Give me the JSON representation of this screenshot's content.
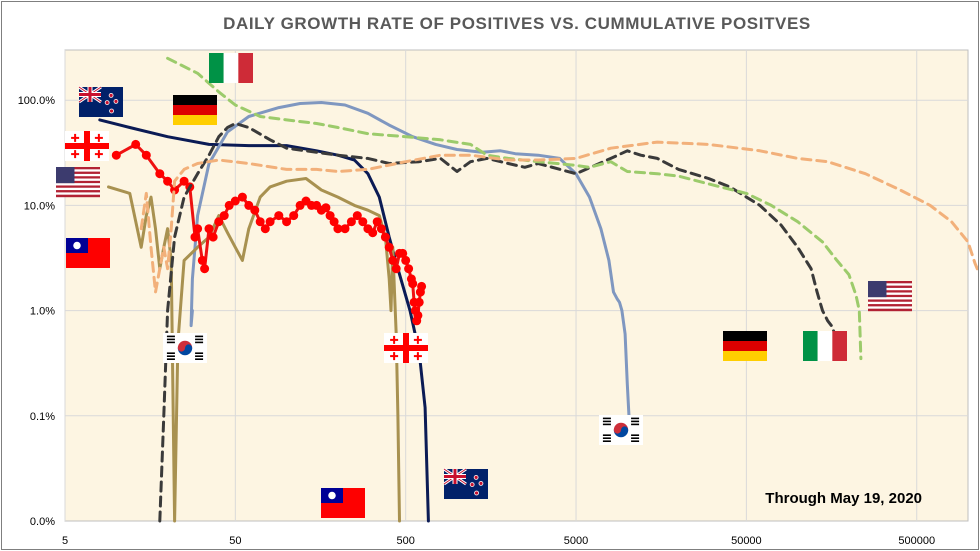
{
  "chart_data": {
    "type": "line",
    "title": "DAILY GROWTH RATE OF POSITIVES VS. CUMMULATIVE POSITVES",
    "annotation": "Through May 19, 2020",
    "xlabel": "",
    "ylabel": "",
    "x_scale": "log",
    "y_scale": "log",
    "xlim": [
      5,
      1000000
    ],
    "ylim": [
      0.0001,
      3.0
    ],
    "x_ticks": [
      5,
      50,
      500,
      5000,
      50000,
      500000
    ],
    "x_tick_labels": [
      "5",
      "50",
      "500",
      "5000",
      "50000",
      "500000"
    ],
    "y_ticks": [
      0.0001,
      0.001,
      0.01,
      0.1,
      1.0
    ],
    "y_tick_labels": [
      "0.0%",
      "0.1%",
      "1.0%",
      "10.0%",
      "100.0%"
    ],
    "grid": true,
    "background": "#fdf5e2",
    "legend": "none (series identified by flag icons at line ends)",
    "series": [
      {
        "name": "New Zealand",
        "color": "#0b1b55",
        "style": "solid",
        "points": [
          [
            8,
            0.65
          ],
          [
            12,
            0.55
          ],
          [
            20,
            0.45
          ],
          [
            35,
            0.38
          ],
          [
            60,
            0.37
          ],
          [
            100,
            0.37
          ],
          [
            150,
            0.33
          ],
          [
            200,
            0.3
          ],
          [
            250,
            0.27
          ],
          [
            300,
            0.2
          ],
          [
            350,
            0.12
          ],
          [
            400,
            0.05
          ],
          [
            450,
            0.025
          ],
          [
            530,
            0.01
          ],
          [
            600,
            0.004
          ],
          [
            650,
            0.0012
          ],
          [
            680,
            5e-05
          ]
        ]
      },
      {
        "name": "South Korea",
        "color": "#7f97c0",
        "style": "solid",
        "points": [
          [
            28,
            0.01
          ],
          [
            27.5,
            0.0072
          ],
          [
            28,
            0.02
          ],
          [
            30,
            0.08
          ],
          [
            35,
            0.25
          ],
          [
            45,
            0.5
          ],
          [
            60,
            0.7
          ],
          [
            90,
            0.85
          ],
          [
            120,
            0.93
          ],
          [
            160,
            0.95
          ],
          [
            220,
            0.9
          ],
          [
            300,
            0.75
          ],
          [
            400,
            0.58
          ],
          [
            550,
            0.45
          ],
          [
            750,
            0.38
          ],
          [
            1000,
            0.34
          ],
          [
            1400,
            0.32
          ],
          [
            1800,
            0.33
          ],
          [
            2200,
            0.31
          ],
          [
            3000,
            0.3
          ],
          [
            4000,
            0.28
          ],
          [
            5000,
            0.2
          ],
          [
            6000,
            0.12
          ],
          [
            7000,
            0.06
          ],
          [
            7800,
            0.03
          ],
          [
            8300,
            0.015
          ],
          [
            8700,
            0.013
          ],
          [
            9000,
            0.012
          ],
          [
            9300,
            0.01
          ],
          [
            9700,
            0.006
          ],
          [
            10000,
            0.002
          ],
          [
            10300,
            0.0008
          ],
          [
            10450,
            0.00055
          ]
        ]
      },
      {
        "name": "Taiwan",
        "color": "#a89150",
        "style": "solid",
        "points": [
          [
            9,
            0.15
          ],
          [
            12,
            0.13
          ],
          [
            14,
            0.04
          ],
          [
            15,
            0.08
          ],
          [
            16,
            0.12
          ],
          [
            17,
            0.06
          ],
          [
            18,
            0.025
          ],
          [
            19,
            0.04
          ],
          [
            20,
            0.06
          ],
          [
            21,
            0.03
          ],
          [
            22,
            5e-05
          ],
          [
            23,
            0.005
          ],
          [
            25,
            0.03
          ],
          [
            30,
            0.04
          ],
          [
            35,
            0.05
          ],
          [
            40,
            0.08
          ],
          [
            45,
            0.055
          ],
          [
            50,
            0.04
          ],
          [
            55,
            0.03
          ],
          [
            60,
            0.06
          ],
          [
            70,
            0.12
          ],
          [
            80,
            0.15
          ],
          [
            100,
            0.17
          ],
          [
            130,
            0.18
          ],
          [
            160,
            0.14
          ],
          [
            200,
            0.12
          ],
          [
            250,
            0.1
          ],
          [
            300,
            0.09
          ],
          [
            350,
            0.08
          ],
          [
            380,
            0.05
          ],
          [
            400,
            0.02
          ],
          [
            410,
            0.01
          ],
          [
            420,
            0.04
          ],
          [
            430,
            0.015
          ],
          [
            440,
            0.006
          ],
          [
            450,
            0.001
          ],
          [
            460,
            5e-05
          ]
        ]
      },
      {
        "name": "Georgia",
        "color": "#ee1111",
        "style": "solid+markers",
        "points": [
          [
            10,
            0.3
          ],
          [
            13,
            0.38
          ],
          [
            15,
            0.3
          ],
          [
            18,
            0.2
          ],
          [
            20,
            0.17
          ],
          [
            22,
            0.14
          ],
          [
            25,
            0.17
          ],
          [
            27,
            0.15
          ],
          [
            29,
            0.05
          ],
          [
            30,
            0.06
          ],
          [
            32,
            0.03
          ],
          [
            33,
            0.025
          ],
          [
            35,
            0.06
          ],
          [
            37,
            0.05
          ],
          [
            40,
            0.07
          ],
          [
            43,
            0.08
          ],
          [
            46,
            0.1
          ],
          [
            50,
            0.11
          ],
          [
            55,
            0.12
          ],
          [
            60,
            0.1
          ],
          [
            65,
            0.09
          ],
          [
            70,
            0.07
          ],
          [
            75,
            0.06
          ],
          [
            80,
            0.07
          ],
          [
            90,
            0.08
          ],
          [
            100,
            0.07
          ],
          [
            110,
            0.08
          ],
          [
            120,
            0.1
          ],
          [
            130,
            0.11
          ],
          [
            140,
            0.1
          ],
          [
            150,
            0.1
          ],
          [
            160,
            0.09
          ],
          [
            170,
            0.095
          ],
          [
            180,
            0.08
          ],
          [
            190,
            0.07
          ],
          [
            200,
            0.06
          ],
          [
            220,
            0.06
          ],
          [
            240,
            0.07
          ],
          [
            260,
            0.08
          ],
          [
            280,
            0.07
          ],
          [
            300,
            0.06
          ],
          [
            320,
            0.055
          ],
          [
            340,
            0.07
          ],
          [
            360,
            0.06
          ],
          [
            380,
            0.05
          ],
          [
            400,
            0.04
          ],
          [
            420,
            0.03
          ],
          [
            440,
            0.025
          ],
          [
            460,
            0.035
          ],
          [
            480,
            0.035
          ],
          [
            500,
            0.03
          ],
          [
            520,
            0.025
          ],
          [
            540,
            0.02
          ],
          [
            550,
            0.018
          ],
          [
            560,
            0.012
          ],
          [
            570,
            0.01
          ],
          [
            580,
            0.008
          ],
          [
            590,
            0.009
          ],
          [
            600,
            0.012
          ],
          [
            610,
            0.015
          ],
          [
            620,
            0.017
          ]
        ]
      },
      {
        "name": "Germany",
        "color": "#3a3a3a",
        "style": "dashed",
        "points": [
          [
            18,
            5e-05
          ],
          [
            19,
            0.001
          ],
          [
            20,
            0.01
          ],
          [
            22,
            0.05
          ],
          [
            25,
            0.12
          ],
          [
            30,
            0.2
          ],
          [
            35,
            0.3
          ],
          [
            40,
            0.45
          ],
          [
            45,
            0.55
          ],
          [
            50,
            0.6
          ],
          [
            60,
            0.55
          ],
          [
            80,
            0.42
          ],
          [
            100,
            0.35
          ],
          [
            150,
            0.32
          ],
          [
            200,
            0.3
          ],
          [
            300,
            0.28
          ],
          [
            400,
            0.25
          ],
          [
            600,
            0.26
          ],
          [
            800,
            0.28
          ],
          [
            1000,
            0.21
          ],
          [
            1200,
            0.26
          ],
          [
            1500,
            0.28
          ],
          [
            2000,
            0.25
          ],
          [
            2500,
            0.23
          ],
          [
            3000,
            0.25
          ],
          [
            5000,
            0.2
          ],
          [
            8000,
            0.28
          ],
          [
            10000,
            0.33
          ],
          [
            12000,
            0.3
          ],
          [
            15000,
            0.28
          ],
          [
            20000,
            0.22
          ],
          [
            30000,
            0.18
          ],
          [
            40000,
            0.15
          ],
          [
            60000,
            0.1
          ],
          [
            80000,
            0.065
          ],
          [
            100000,
            0.04
          ],
          [
            120000,
            0.025
          ],
          [
            130000,
            0.015
          ],
          [
            140000,
            0.01
          ],
          [
            150000,
            0.008
          ],
          [
            160000,
            0.007
          ],
          [
            170000,
            0.005
          ],
          [
            175000,
            0.0035
          ]
        ]
      },
      {
        "name": "Italy",
        "color": "#9ccb6b",
        "style": "dashed",
        "points": [
          [
            20,
            2.5
          ],
          [
            30,
            1.8
          ],
          [
            40,
            1.2
          ],
          [
            50,
            0.9
          ],
          [
            70,
            0.7
          ],
          [
            100,
            0.65
          ],
          [
            150,
            0.6
          ],
          [
            200,
            0.55
          ],
          [
            300,
            0.48
          ],
          [
            500,
            0.45
          ],
          [
            800,
            0.42
          ],
          [
            1200,
            0.38
          ],
          [
            1500,
            0.3
          ],
          [
            2000,
            0.28
          ],
          [
            3000,
            0.26
          ],
          [
            5000,
            0.24
          ],
          [
            6000,
            0.23
          ],
          [
            8000,
            0.26
          ],
          [
            10000,
            0.21
          ],
          [
            15000,
            0.2
          ],
          [
            20000,
            0.19
          ],
          [
            30000,
            0.16
          ],
          [
            50000,
            0.13
          ],
          [
            70000,
            0.1
          ],
          [
            100000,
            0.07
          ],
          [
            140000,
            0.045
          ],
          [
            170000,
            0.03
          ],
          [
            200000,
            0.022
          ],
          [
            220000,
            0.014
          ],
          [
            230000,
            0.01
          ],
          [
            235000,
            0.0035
          ]
        ]
      },
      {
        "name": "United States",
        "color": "#f2b07a",
        "style": "dashed",
        "points": [
          [
            14,
            0.06
          ],
          [
            15,
            0.13
          ],
          [
            16,
            0.04
          ],
          [
            17,
            0.015
          ],
          [
            18,
            0.025
          ],
          [
            19,
            0.04
          ],
          [
            20,
            0.025
          ],
          [
            21,
            0.06
          ],
          [
            22,
            0.17
          ],
          [
            25,
            0.22
          ],
          [
            30,
            0.25
          ],
          [
            40,
            0.27
          ],
          [
            60,
            0.25
          ],
          [
            100,
            0.22
          ],
          [
            150,
            0.22
          ],
          [
            200,
            0.21
          ],
          [
            300,
            0.22
          ],
          [
            500,
            0.26
          ],
          [
            800,
            0.3
          ],
          [
            1200,
            0.3
          ],
          [
            2000,
            0.27
          ],
          [
            3000,
            0.27
          ],
          [
            5000,
            0.28
          ],
          [
            8000,
            0.35
          ],
          [
            15000,
            0.4
          ],
          [
            30000,
            0.38
          ],
          [
            60000,
            0.33
          ],
          [
            100000,
            0.28
          ],
          [
            150000,
            0.26
          ],
          [
            250000,
            0.2
          ],
          [
            400000,
            0.14
          ],
          [
            600000,
            0.1
          ],
          [
            800000,
            0.07
          ],
          [
            1000000,
            0.045
          ],
          [
            1100000,
            0.028
          ],
          [
            1200000,
            0.02
          ],
          [
            1300000,
            0.018
          ],
          [
            1400000,
            0.017
          ],
          [
            1450000,
            0.016
          ]
        ]
      }
    ],
    "flags": [
      {
        "name": "new-zealand-flag",
        "country": "New Zealand"
      },
      {
        "name": "germany-flag",
        "country": "Germany"
      },
      {
        "name": "italy-flag",
        "country": "Italy"
      },
      {
        "name": "georgia-flag",
        "country": "Georgia"
      },
      {
        "name": "usa-flag",
        "country": "United States"
      },
      {
        "name": "taiwan-flag",
        "country": "Taiwan"
      },
      {
        "name": "south-korea-flag",
        "country": "South Korea"
      }
    ]
  }
}
